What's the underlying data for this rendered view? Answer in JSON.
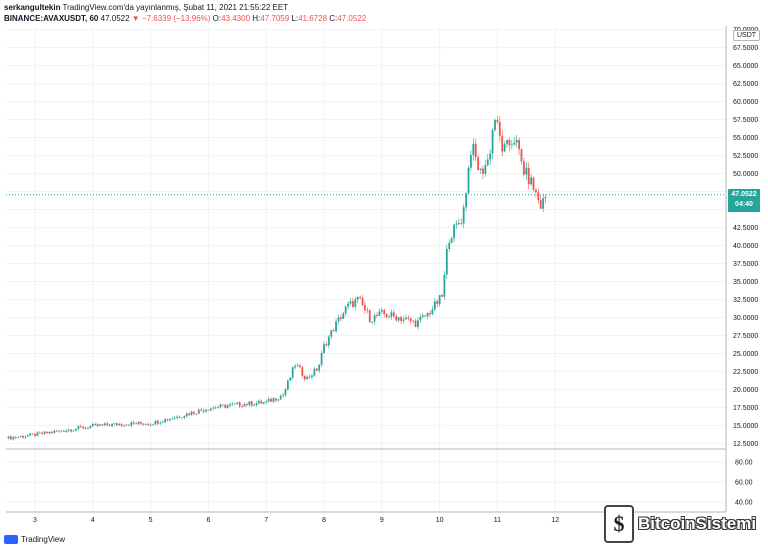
{
  "header": {
    "author": "serkangultekin",
    "published": "TradingView.com'da yayınlanmış, Şubat 11, 2021 21:55:22 EET",
    "symbol": "BINANCE:AVAXUSDT, 60",
    "last": "47.0522",
    "change": "▼ −7.6339 (−13.96%)",
    "o_label": "O:",
    "o": "43.4300",
    "h_label": "H:",
    "h": "47.7059",
    "l_label": "L:",
    "l": "41.6728",
    "c_label": "C:",
    "c": "47.0522"
  },
  "axis_unit": "USDT",
  "price_badge": {
    "price": "47.0522",
    "countdown": "04:40"
  },
  "footer": {
    "brand": "TradingView"
  },
  "watermark": {
    "text": "BitcoinSistemi",
    "coin_glyph": "$"
  },
  "colors": {
    "up": "#26a69a",
    "down": "#ef5350",
    "grid": "#f0f3fa",
    "axis": "#b2b5be"
  },
  "chart_data": {
    "type": "candlestick",
    "title": "",
    "xlabel": "",
    "ylabel": "",
    "x_ticks": [
      "3",
      "4",
      "5",
      "6",
      "7",
      "8",
      "9",
      "10",
      "11",
      "12"
    ],
    "price_ticks": [
      "12.5000",
      "15.0000",
      "17.5000",
      "20.0000",
      "22.5000",
      "25.0000",
      "27.5000",
      "30.0000",
      "32.5000",
      "35.0000",
      "37.5000",
      "40.0000",
      "42.5000",
      "45.0000",
      "47.5000",
      "50.0000",
      "52.5000",
      "55.0000",
      "57.5000",
      "60.0000",
      "62.5000",
      "65.0000",
      "67.5000",
      "70.0000"
    ],
    "price_range": [
      12,
      70.5
    ],
    "indicator_ticks": [
      "40.00",
      "60.00",
      "80.00"
    ],
    "indicator_range": [
      30,
      90
    ],
    "last_price": 47.0522,
    "grid": true,
    "series": [
      {
        "x_start": 2.5,
        "x_end": 11.85,
        "anchors": [
          [
            2.5,
            13.2
          ],
          [
            3.0,
            13.7
          ],
          [
            3.5,
            14.3
          ],
          [
            4.0,
            14.9
          ],
          [
            4.5,
            15.2
          ],
          [
            5.0,
            15.3
          ],
          [
            5.5,
            16.3
          ],
          [
            6.0,
            17.4
          ],
          [
            6.5,
            17.9
          ],
          [
            7.0,
            18.2
          ],
          [
            7.3,
            19.3
          ],
          [
            7.5,
            23.5
          ],
          [
            7.7,
            21.5
          ],
          [
            7.9,
            23.0
          ],
          [
            8.0,
            26.0
          ],
          [
            8.2,
            29.0
          ],
          [
            8.4,
            31.5
          ],
          [
            8.6,
            32.5
          ],
          [
            8.8,
            29.8
          ],
          [
            9.0,
            30.5
          ],
          [
            9.3,
            30.0
          ],
          [
            9.6,
            29.2
          ],
          [
            9.8,
            30.5
          ],
          [
            10.05,
            33.0
          ],
          [
            10.15,
            41.0
          ],
          [
            10.4,
            44.0
          ],
          [
            10.55,
            54.0
          ],
          [
            10.7,
            50.0
          ],
          [
            10.85,
            52.0
          ],
          [
            10.95,
            58.0
          ],
          [
            11.1,
            53.0
          ],
          [
            11.3,
            55.0
          ],
          [
            11.45,
            50.5
          ],
          [
            11.6,
            48.5
          ],
          [
            11.75,
            45.5
          ],
          [
            11.85,
            47.05
          ]
        ]
      }
    ]
  }
}
